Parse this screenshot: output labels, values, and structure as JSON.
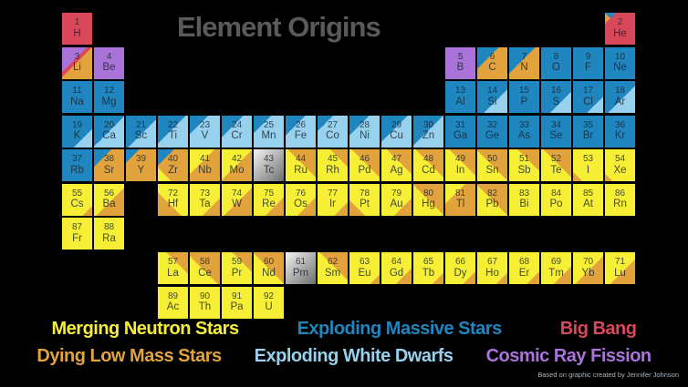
{
  "title": "Element Origins",
  "credit": "Based on graphic created by Jennifer Johnson",
  "colors": {
    "neutron": "#f7ef35",
    "lowmass": "#e3a33c",
    "massive": "#1f86c0",
    "whitedwarf": "#97d1ee",
    "bigbang": "#d9475a",
    "cosmic": "#a973d9",
    "manmade_light": "#f4f4f4",
    "manmade_dark": "#6e6e6e",
    "title_gray": "#5a5a5a"
  },
  "legend": {
    "rows": [
      [
        {
          "label": "Merging Neutron Stars",
          "color": "neutron"
        },
        {
          "label": "Exploding Massive Stars",
          "color": "massive"
        },
        {
          "label": "Big Bang",
          "color": "bigbang"
        }
      ],
      [
        {
          "label": "Dying Low Mass Stars",
          "color": "lowmass"
        },
        {
          "label": "Exploding White Dwarfs",
          "color": "whitedwarf"
        },
        {
          "label": "Cosmic Ray Fission",
          "color": "cosmic"
        }
      ]
    ]
  },
  "elements": [
    {
      "n": 1,
      "s": "H",
      "r": 1,
      "c": 1,
      "f": [
        [
          "bigbang",
          100
        ]
      ]
    },
    {
      "n": 2,
      "s": "He",
      "r": 1,
      "c": 18,
      "f": [
        [
          "bigbang",
          100
        ]
      ],
      "hc": true
    },
    {
      "n": 3,
      "s": "Li",
      "r": 2,
      "c": 1,
      "f": [
        [
          "cosmic",
          40
        ],
        [
          "bigbang",
          48
        ],
        [
          "lowmass",
          100
        ]
      ]
    },
    {
      "n": 4,
      "s": "Be",
      "r": 2,
      "c": 2,
      "f": [
        [
          "cosmic",
          100
        ]
      ]
    },
    {
      "n": 5,
      "s": "B",
      "r": 2,
      "c": 13,
      "f": [
        [
          "cosmic",
          100
        ]
      ]
    },
    {
      "n": 6,
      "s": "C",
      "r": 2,
      "c": 14,
      "f": [
        [
          "massive",
          35
        ],
        [
          "lowmass",
          100
        ]
      ]
    },
    {
      "n": 7,
      "s": "N",
      "r": 2,
      "c": 15,
      "f": [
        [
          "massive",
          42
        ],
        [
          "lowmass",
          100
        ]
      ]
    },
    {
      "n": 8,
      "s": "O",
      "r": 2,
      "c": 16,
      "f": [
        [
          "massive",
          100
        ]
      ]
    },
    {
      "n": 9,
      "s": "F",
      "r": 2,
      "c": 17,
      "f": [
        [
          "massive",
          100
        ]
      ]
    },
    {
      "n": 10,
      "s": "Ne",
      "r": 2,
      "c": 18,
      "f": [
        [
          "massive",
          100
        ]
      ]
    },
    {
      "n": 11,
      "s": "Na",
      "r": 3,
      "c": 1,
      "f": [
        [
          "massive",
          100
        ]
      ]
    },
    {
      "n": 12,
      "s": "Mg",
      "r": 3,
      "c": 2,
      "f": [
        [
          "massive",
          100
        ]
      ]
    },
    {
      "n": 13,
      "s": "Al",
      "r": 3,
      "c": 13,
      "f": [
        [
          "massive",
          100
        ]
      ]
    },
    {
      "n": 14,
      "s": "Si",
      "r": 3,
      "c": 14,
      "f": [
        [
          "massive",
          62
        ],
        [
          "whitedwarf",
          100
        ]
      ]
    },
    {
      "n": 15,
      "s": "P",
      "r": 3,
      "c": 15,
      "f": [
        [
          "massive",
          100
        ]
      ]
    },
    {
      "n": 16,
      "s": "S",
      "r": 3,
      "c": 16,
      "f": [
        [
          "massive",
          66
        ],
        [
          "whitedwarf",
          100
        ]
      ]
    },
    {
      "n": 17,
      "s": "Cl",
      "r": 3,
      "c": 17,
      "f": [
        [
          "massive",
          74
        ],
        [
          "whitedwarf",
          100
        ]
      ]
    },
    {
      "n": 18,
      "s": "Ar",
      "r": 3,
      "c": 18,
      "f": [
        [
          "massive",
          56
        ],
        [
          "whitedwarf",
          100
        ]
      ]
    },
    {
      "n": 19,
      "s": "K",
      "r": 4,
      "c": 1,
      "f": [
        [
          "massive",
          70
        ],
        [
          "whitedwarf",
          100
        ]
      ]
    },
    {
      "n": 20,
      "s": "Ca",
      "r": 4,
      "c": 2,
      "f": [
        [
          "massive",
          50
        ],
        [
          "whitedwarf",
          100
        ]
      ]
    },
    {
      "n": 21,
      "s": "Sc",
      "r": 4,
      "c": 3,
      "f": [
        [
          "massive",
          55
        ],
        [
          "whitedwarf",
          100
        ]
      ]
    },
    {
      "n": 22,
      "s": "Ti",
      "r": 4,
      "c": 4,
      "f": [
        [
          "massive",
          45
        ],
        [
          "whitedwarf",
          100
        ]
      ]
    },
    {
      "n": 23,
      "s": "V",
      "r": 4,
      "c": 5,
      "f": [
        [
          "massive",
          30
        ],
        [
          "whitedwarf",
          100
        ]
      ]
    },
    {
      "n": 24,
      "s": "Cr",
      "r": 4,
      "c": 6,
      "f": [
        [
          "massive",
          35
        ],
        [
          "whitedwarf",
          100
        ]
      ]
    },
    {
      "n": 25,
      "s": "Mn",
      "r": 4,
      "c": 7,
      "f": [
        [
          "massive",
          28
        ],
        [
          "whitedwarf",
          100
        ]
      ]
    },
    {
      "n": 26,
      "s": "Fe",
      "r": 4,
      "c": 8,
      "f": [
        [
          "massive",
          32
        ],
        [
          "whitedwarf",
          100
        ]
      ]
    },
    {
      "n": 27,
      "s": "Co",
      "r": 4,
      "c": 9,
      "f": [
        [
          "massive",
          25
        ],
        [
          "whitedwarf",
          100
        ]
      ]
    },
    {
      "n": 28,
      "s": "Ni",
      "r": 4,
      "c": 10,
      "f": [
        [
          "massive",
          32
        ],
        [
          "whitedwarf",
          100
        ]
      ]
    },
    {
      "n": 29,
      "s": "Cu",
      "r": 4,
      "c": 11,
      "f": [
        [
          "massive",
          42
        ],
        [
          "whitedwarf",
          100
        ]
      ]
    },
    {
      "n": 30,
      "s": "Zn",
      "r": 4,
      "c": 12,
      "f": [
        [
          "massive",
          48
        ],
        [
          "whitedwarf",
          100
        ]
      ]
    },
    {
      "n": 31,
      "s": "Ga",
      "r": 4,
      "c": 13,
      "f": [
        [
          "massive",
          100
        ]
      ]
    },
    {
      "n": 32,
      "s": "Ge",
      "r": 4,
      "c": 14,
      "f": [
        [
          "massive",
          100
        ]
      ]
    },
    {
      "n": 33,
      "s": "As",
      "r": 4,
      "c": 15,
      "f": [
        [
          "massive",
          100
        ]
      ]
    },
    {
      "n": 34,
      "s": "Se",
      "r": 4,
      "c": 16,
      "f": [
        [
          "massive",
          100
        ]
      ]
    },
    {
      "n": 35,
      "s": "Br",
      "r": 4,
      "c": 17,
      "f": [
        [
          "massive",
          100
        ]
      ]
    },
    {
      "n": 36,
      "s": "Kr",
      "r": 4,
      "c": 18,
      "f": [
        [
          "massive",
          100
        ]
      ]
    },
    {
      "n": 37,
      "s": "Rb",
      "r": 5,
      "c": 1,
      "f": [
        [
          "massive",
          100
        ]
      ]
    },
    {
      "n": 38,
      "s": "Sr",
      "r": 5,
      "c": 2,
      "f": [
        [
          "massive",
          28
        ],
        [
          "lowmass",
          100
        ]
      ]
    },
    {
      "n": 39,
      "s": "Y",
      "r": 5,
      "c": 3,
      "f": [
        [
          "massive",
          22
        ],
        [
          "lowmass",
          100
        ]
      ]
    },
    {
      "n": 40,
      "s": "Zr",
      "r": 5,
      "c": 4,
      "f": [
        [
          "massive",
          26
        ],
        [
          "lowmass",
          100
        ]
      ],
      "ov": [
        225,
        "neutron",
        78
      ]
    },
    {
      "n": 41,
      "s": "Nb",
      "r": 5,
      "c": 5,
      "f": [
        [
          "neutron",
          40
        ],
        [
          "lowmass",
          100
        ]
      ]
    },
    {
      "n": 42,
      "s": "Mo",
      "r": 5,
      "c": 6,
      "f": [
        [
          "neutron",
          50
        ],
        [
          "lowmass",
          100
        ]
      ]
    },
    {
      "n": 43,
      "s": "Tc",
      "r": 5,
      "c": 7,
      "f": [
        [
          "manmade_light",
          0
        ],
        [
          "manmade_dark",
          100
        ]
      ],
      "sm": true
    },
    {
      "n": 44,
      "s": "Ru",
      "r": 5,
      "c": 8,
      "d": 45,
      "f": [
        [
          "neutron",
          55
        ],
        [
          "lowmass",
          100
        ]
      ]
    },
    {
      "n": 45,
      "s": "Rh",
      "r": 5,
      "c": 9,
      "d": 45,
      "f": [
        [
          "neutron",
          72
        ],
        [
          "lowmass",
          100
        ]
      ]
    },
    {
      "n": 46,
      "s": "Pd",
      "r": 5,
      "c": 10,
      "d": 45,
      "f": [
        [
          "neutron",
          55
        ],
        [
          "lowmass",
          100
        ]
      ]
    },
    {
      "n": 47,
      "s": "Ag",
      "r": 5,
      "c": 11,
      "d": 45,
      "f": [
        [
          "neutron",
          60
        ],
        [
          "lowmass",
          100
        ]
      ]
    },
    {
      "n": 48,
      "s": "Cd",
      "r": 5,
      "c": 12,
      "d": 45,
      "f": [
        [
          "neutron",
          55
        ],
        [
          "lowmass",
          100
        ]
      ]
    },
    {
      "n": 49,
      "s": "In",
      "r": 5,
      "c": 13,
      "d": 45,
      "f": [
        [
          "neutron",
          58
        ],
        [
          "lowmass",
          100
        ]
      ]
    },
    {
      "n": 50,
      "s": "Sn",
      "r": 5,
      "c": 14,
      "d": 45,
      "f": [
        [
          "neutron",
          50
        ],
        [
          "lowmass",
          100
        ]
      ]
    },
    {
      "n": 51,
      "s": "Sb",
      "r": 5,
      "c": 15,
      "d": 45,
      "f": [
        [
          "neutron",
          65
        ],
        [
          "lowmass",
          100
        ]
      ]
    },
    {
      "n": 52,
      "s": "Te",
      "r": 5,
      "c": 16,
      "d": 45,
      "f": [
        [
          "neutron",
          55
        ],
        [
          "lowmass",
          100
        ]
      ]
    },
    {
      "n": 53,
      "s": "I",
      "r": 5,
      "c": 17,
      "d": 225,
      "f": [
        [
          "neutron",
          85
        ],
        [
          "lowmass",
          100
        ]
      ]
    },
    {
      "n": 54,
      "s": "Xe",
      "r": 5,
      "c": 18,
      "d": 225,
      "f": [
        [
          "neutron",
          88
        ],
        [
          "lowmass",
          100
        ]
      ]
    },
    {
      "n": 55,
      "s": "Cs",
      "r": 6,
      "c": 1,
      "f": [
        [
          "neutron",
          84
        ],
        [
          "lowmass",
          100
        ]
      ]
    },
    {
      "n": 56,
      "s": "Ba",
      "r": 6,
      "c": 2,
      "f": [
        [
          "neutron",
          55
        ],
        [
          "lowmass",
          100
        ]
      ]
    },
    {
      "n": 72,
      "s": "Hf",
      "r": 6,
      "c": 4,
      "d": 225,
      "f": [
        [
          "neutron",
          62
        ],
        [
          "lowmass",
          100
        ]
      ]
    },
    {
      "n": 73,
      "s": "Ta",
      "r": 6,
      "c": 5,
      "f": [
        [
          "neutron",
          72
        ],
        [
          "lowmass",
          100
        ]
      ]
    },
    {
      "n": 74,
      "s": "W",
      "r": 6,
      "c": 6,
      "f": [
        [
          "neutron",
          55
        ],
        [
          "lowmass",
          100
        ]
      ]
    },
    {
      "n": 75,
      "s": "Re",
      "r": 6,
      "c": 7,
      "f": [
        [
          "neutron",
          70
        ],
        [
          "lowmass",
          100
        ]
      ]
    },
    {
      "n": 76,
      "s": "Os",
      "r": 6,
      "c": 8,
      "f": [
        [
          "neutron",
          70
        ],
        [
          "lowmass",
          100
        ]
      ]
    },
    {
      "n": 77,
      "s": "Ir",
      "r": 6,
      "c": 9,
      "f": [
        [
          "neutron",
          78
        ],
        [
          "lowmass",
          100
        ]
      ]
    },
    {
      "n": 78,
      "s": "Pt",
      "r": 6,
      "c": 10,
      "d": 225,
      "f": [
        [
          "neutron",
          75
        ],
        [
          "lowmass",
          100
        ]
      ]
    },
    {
      "n": 79,
      "s": "Au",
      "r": 6,
      "c": 11,
      "f": [
        [
          "neutron",
          72
        ],
        [
          "lowmass",
          100
        ]
      ]
    },
    {
      "n": 80,
      "s": "Hg",
      "r": 6,
      "c": 12,
      "d": 45,
      "f": [
        [
          "neutron",
          50
        ],
        [
          "lowmass",
          100
        ]
      ]
    },
    {
      "n": 81,
      "s": "Tl",
      "r": 6,
      "c": 13,
      "f": [
        [
          "neutron",
          32
        ],
        [
          "lowmass",
          100
        ]
      ]
    },
    {
      "n": 82,
      "s": "Pb",
      "r": 6,
      "c": 14,
      "d": 45,
      "f": [
        [
          "neutron",
          50
        ],
        [
          "lowmass",
          100
        ]
      ]
    },
    {
      "n": 83,
      "s": "Bi",
      "r": 6,
      "c": 15,
      "f": [
        [
          "neutron",
          100
        ]
      ]
    },
    {
      "n": 84,
      "s": "Po",
      "r": 6,
      "c": 16,
      "f": [
        [
          "neutron",
          100
        ]
      ]
    },
    {
      "n": 85,
      "s": "At",
      "r": 6,
      "c": 17,
      "f": [
        [
          "neutron",
          100
        ]
      ]
    },
    {
      "n": 86,
      "s": "Rn",
      "r": 6,
      "c": 18,
      "f": [
        [
          "neutron",
          100
        ]
      ]
    },
    {
      "n": 87,
      "s": "Fr",
      "r": 7,
      "c": 1,
      "f": [
        [
          "neutron",
          100
        ]
      ]
    },
    {
      "n": 88,
      "s": "Ra",
      "r": 7,
      "c": 2,
      "f": [
        [
          "neutron",
          100
        ]
      ]
    },
    {
      "n": 57,
      "s": "La",
      "r": 8,
      "c": 4,
      "d": 45,
      "f": [
        [
          "neutron",
          65
        ],
        [
          "lowmass",
          100
        ]
      ]
    },
    {
      "n": 58,
      "s": "Ce",
      "r": 8,
      "c": 5,
      "d": 45,
      "f": [
        [
          "neutron",
          45
        ],
        [
          "lowmass",
          100
        ]
      ]
    },
    {
      "n": 59,
      "s": "Pr",
      "r": 8,
      "c": 6,
      "d": 45,
      "f": [
        [
          "neutron",
          68
        ],
        [
          "lowmass",
          100
        ]
      ]
    },
    {
      "n": 60,
      "s": "Nd",
      "r": 8,
      "c": 7,
      "d": 45,
      "f": [
        [
          "neutron",
          50
        ],
        [
          "lowmass",
          100
        ]
      ]
    },
    {
      "n": 61,
      "s": "Pm",
      "r": 8,
      "c": 8,
      "f": [
        [
          "manmade_light",
          0
        ],
        [
          "manmade_dark",
          100
        ]
      ],
      "sm": true
    },
    {
      "n": 62,
      "s": "Sm",
      "r": 8,
      "c": 9,
      "d": 45,
      "f": [
        [
          "neutron",
          55
        ],
        [
          "lowmass",
          100
        ]
      ]
    },
    {
      "n": 63,
      "s": "Eu",
      "r": 8,
      "c": 10,
      "f": [
        [
          "neutron",
          85
        ],
        [
          "lowmass",
          100
        ]
      ]
    },
    {
      "n": 64,
      "s": "Gd",
      "r": 8,
      "c": 11,
      "f": [
        [
          "neutron",
          75
        ],
        [
          "lowmass",
          100
        ]
      ]
    },
    {
      "n": 65,
      "s": "Tb",
      "r": 8,
      "c": 12,
      "f": [
        [
          "neutron",
          82
        ],
        [
          "lowmass",
          100
        ]
      ]
    },
    {
      "n": 66,
      "s": "Dy",
      "r": 8,
      "c": 13,
      "f": [
        [
          "neutron",
          80
        ],
        [
          "lowmass",
          100
        ]
      ]
    },
    {
      "n": 67,
      "s": "Ho",
      "r": 8,
      "c": 14,
      "f": [
        [
          "neutron",
          82
        ],
        [
          "lowmass",
          100
        ]
      ]
    },
    {
      "n": 68,
      "s": "Er",
      "r": 8,
      "c": 15,
      "f": [
        [
          "neutron",
          80
        ],
        [
          "lowmass",
          100
        ]
      ]
    },
    {
      "n": 69,
      "s": "Tm",
      "r": 8,
      "c": 16,
      "f": [
        [
          "neutron",
          72
        ],
        [
          "lowmass",
          100
        ]
      ]
    },
    {
      "n": 70,
      "s": "Yb",
      "r": 8,
      "c": 17,
      "f": [
        [
          "neutron",
          55
        ],
        [
          "lowmass",
          100
        ]
      ]
    },
    {
      "n": 71,
      "s": "Lu",
      "r": 8,
      "c": 18,
      "f": [
        [
          "neutron",
          60
        ],
        [
          "lowmass",
          100
        ]
      ]
    },
    {
      "n": 89,
      "s": "Ac",
      "r": 9,
      "c": 4,
      "f": [
        [
          "neutron",
          100
        ]
      ]
    },
    {
      "n": 90,
      "s": "Th",
      "r": 9,
      "c": 5,
      "f": [
        [
          "neutron",
          100
        ]
      ]
    },
    {
      "n": 91,
      "s": "Pa",
      "r": 9,
      "c": 6,
      "f": [
        [
          "neutron",
          100
        ]
      ]
    },
    {
      "n": 92,
      "s": "U",
      "r": 9,
      "c": 7,
      "f": [
        [
          "neutron",
          100
        ]
      ]
    }
  ]
}
